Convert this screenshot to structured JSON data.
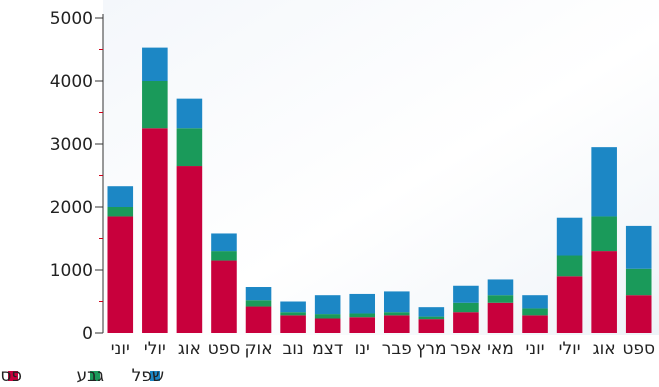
{
  "chart_data": {
    "type": "bar",
    "stacked": true,
    "categories": [
      "יוני",
      "יולי",
      "אוג",
      "ספט",
      "אוק",
      "נוב",
      "דצמ",
      "ינו",
      "פבר",
      "מרץ",
      "אפר",
      "מאי",
      "יוני",
      "יולי",
      "אוג",
      "ספט"
    ],
    "series": [
      {
        "name": "פסגה",
        "color": "#c8003c",
        "values": [
          1850,
          3250,
          2650,
          1150,
          420,
          280,
          230,
          250,
          280,
          220,
          330,
          480,
          280,
          900,
          1300,
          600
        ]
      },
      {
        "name": "גבע",
        "color": "#1a9a5a",
        "values": [
          150,
          750,
          600,
          150,
          100,
          50,
          70,
          60,
          50,
          40,
          150,
          120,
          110,
          330,
          550,
          420
        ]
      },
      {
        "name": "שפל",
        "color": "#1c87c5",
        "values": [
          330,
          530,
          470,
          280,
          210,
          170,
          300,
          310,
          330,
          150,
          270,
          250,
          210,
          600,
          1100,
          680
        ]
      }
    ],
    "yticks": [
      0,
      1000,
      2000,
      3000,
      4000,
      5000
    ],
    "ylim": [
      0,
      5000
    ],
    "legend_position": "bottom-left",
    "grid": false
  }
}
